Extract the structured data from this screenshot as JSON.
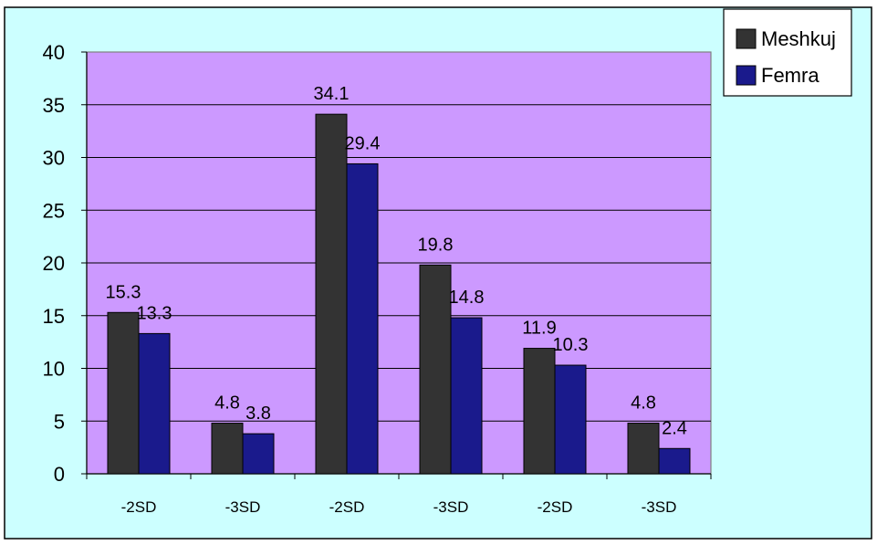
{
  "colors": {
    "outer_background": "#ccffff",
    "plot_background": "#cc99ff",
    "series_1": "#333333",
    "series_2": "#1a1a8c",
    "border": "#000000"
  },
  "chart_data": {
    "type": "bar",
    "categories": [
      "-2SD",
      "-3SD",
      "-2SD",
      "-3SD",
      "-2SD",
      "-3SD"
    ],
    "series": [
      {
        "name": "Meshkuj",
        "values": [
          15.3,
          4.8,
          34.1,
          19.8,
          11.9,
          4.8
        ]
      },
      {
        "name": "Femra",
        "values": [
          13.3,
          3.8,
          29.4,
          14.8,
          10.3,
          2.4
        ]
      }
    ],
    "data_labels": [
      [
        "15.3",
        "4.8",
        "34.1",
        "19.8",
        "11.9",
        "4.8"
      ],
      [
        "13.3",
        "3.8",
        "29.4",
        "14.8",
        "10.3",
        "2.4"
      ]
    ],
    "ylim": [
      0,
      40
    ],
    "yticks": [
      "0",
      "5",
      "10",
      "15",
      "20",
      "25",
      "30",
      "35",
      "40"
    ],
    "grid": true,
    "legend_position": "top-right",
    "title": "",
    "xlabel": "",
    "ylabel": ""
  }
}
